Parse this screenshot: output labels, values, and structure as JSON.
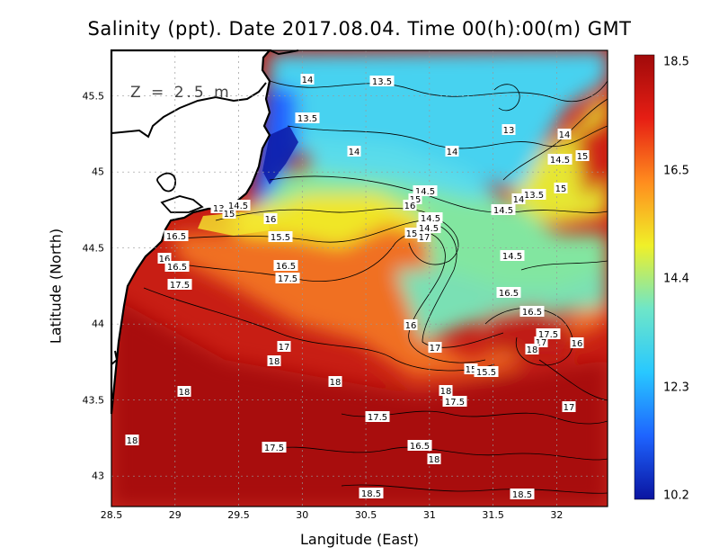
{
  "title": "Salinity (ppt). Date 2017.08.04. Time 00(h):00(m) GMT",
  "depth_label": "Z = 2.5 m",
  "xlabel": "Langitude (East)",
  "ylabel": "Latitude (North)",
  "x_ticks": [
    "28.5",
    "29",
    "29.5",
    "30",
    "30.5",
    "31",
    "31.5",
    "32"
  ],
  "y_ticks": [
    "45.5",
    "45",
    "44.5",
    "44",
    "43.5",
    "43"
  ],
  "colorbar": {
    "ticks": [
      "18.5",
      "16.5",
      "14.4",
      "12.3",
      "10.2"
    ],
    "min": 10.2,
    "max": 18.5,
    "colors": [
      "#0a14a0",
      "#1e64ff",
      "#28c8ff",
      "#6ee6c8",
      "#f0f028",
      "#ff8c1e",
      "#e61e14",
      "#a00a0a"
    ]
  },
  "colors": {
    "land": "#ffffff",
    "coast": "#000000",
    "contour": "#000000"
  },
  "map_extent": {
    "lon": [
      28.5,
      32.4
    ],
    "lat": [
      42.8,
      45.8
    ]
  },
  "contour_labels": [
    "14",
    "13.5",
    "13.5",
    "14",
    "14",
    "13",
    "14",
    "14.5",
    "15",
    "16",
    "14.5",
    "13.5",
    "15",
    "14",
    "14.5",
    "15",
    "14.5",
    "14.5",
    "13.5",
    "15",
    "14.5",
    "16",
    "15.5",
    "16.5",
    "17",
    "15",
    "14.5",
    "16.5",
    "17",
    "17.5",
    "18",
    "16",
    "16.5",
    "17",
    "17.5",
    "18",
    "15",
    "15.5",
    "16",
    "17",
    "16.5",
    "17.5",
    "17",
    "18",
    "16",
    "16.5",
    "17.5",
    "18",
    "18",
    "17.5",
    "16.5",
    "18",
    "17.5",
    "18",
    "18.5",
    "18.5"
  ]
}
